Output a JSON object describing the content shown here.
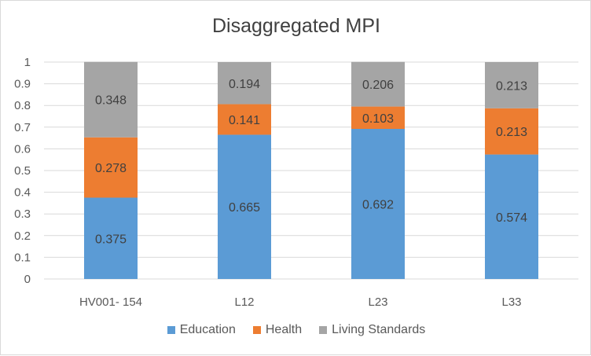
{
  "chart_data": {
    "type": "bar",
    "stacked": true,
    "title": "Disaggregated MPI",
    "categories": [
      "HV001- 154",
      "L12",
      "L23",
      "L33"
    ],
    "series": [
      {
        "name": "Education",
        "color": "#5b9bd5",
        "values": [
          0.375,
          0.665,
          0.692,
          0.574
        ],
        "labels": [
          "0.375",
          "0.665",
          "0.692",
          "0.574"
        ]
      },
      {
        "name": "Health",
        "color": "#ed7d31",
        "values": [
          0.278,
          0.141,
          0.103,
          0.213
        ],
        "labels": [
          "0.278",
          "0.141",
          "0.103",
          "0.213"
        ]
      },
      {
        "name": "Living Standards",
        "color": "#a5a5a5",
        "values": [
          0.348,
          0.194,
          0.206,
          0.213
        ],
        "labels": [
          "0.348",
          "0.194",
          "0.206",
          "0.213"
        ]
      }
    ],
    "yticks": [
      "0",
      "0.1",
      "0.2",
      "0.3",
      "0.4",
      "0.5",
      "0.6",
      "0.7",
      "0.8",
      "0.9",
      "1"
    ],
    "ylim": [
      0,
      1
    ],
    "grid": true,
    "legend_position": "bottom"
  }
}
